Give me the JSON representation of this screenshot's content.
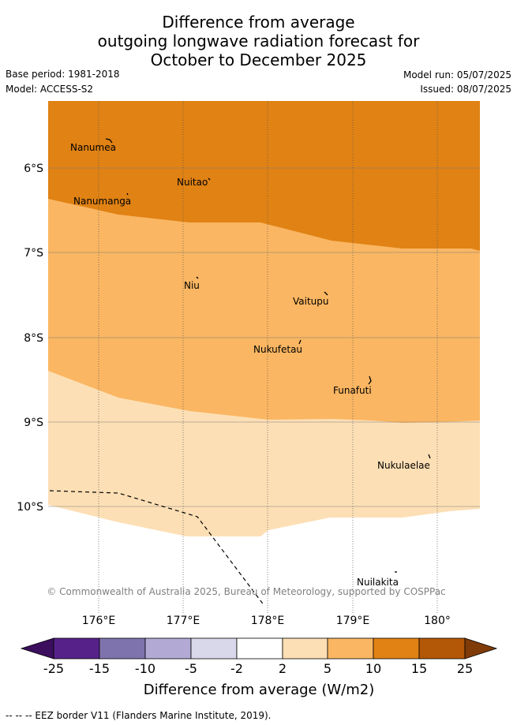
{
  "title": {
    "line1": "Difference from average",
    "line2": "outgoing longwave radiation forecast for",
    "line3": "October to December 2025"
  },
  "meta": {
    "base_period": "Base period: 1981-2018",
    "model": "Model: ACCESS-S2",
    "model_run": "Model run: 05/07/2025",
    "issued": "Issued: 08/07/2025"
  },
  "map": {
    "lat_ticks": [
      "6°S",
      "7°S",
      "8°S",
      "9°S",
      "10°S"
    ],
    "lon_ticks": [
      "176°E",
      "177°E",
      "178°E",
      "179°E",
      "180°"
    ],
    "places": [
      {
        "name": "Nanumea"
      },
      {
        "name": "Nuitao"
      },
      {
        "name": "Nanumanga"
      },
      {
        "name": "Niu"
      },
      {
        "name": "Vaitupu"
      },
      {
        "name": "Nukufetau"
      },
      {
        "name": "Funafuti"
      },
      {
        "name": "Nukulaelae"
      },
      {
        "name": "Nuilakita"
      }
    ],
    "copyright": "© Commonwealth of Australia 2025, Bureau of Meteorology, supported by COSPPac"
  },
  "colorbar": {
    "title": "Difference from average (W/m2)",
    "ticks": [
      "-25",
      "-15",
      "-10",
      "-5",
      "-2",
      "2",
      "5",
      "10",
      "15",
      "25"
    ],
    "colors": [
      "#3b0f5e",
      "#56228a",
      "#7f73ad",
      "#b2aad4",
      "#d8d8ea",
      "#ffffff",
      "#fddfb5",
      "#fab662",
      "#e08214",
      "#b35806",
      "#7f3b08"
    ]
  },
  "footnote": "--  --  -- EEZ border V11 (Flanders Marine Institute, 2019)."
}
